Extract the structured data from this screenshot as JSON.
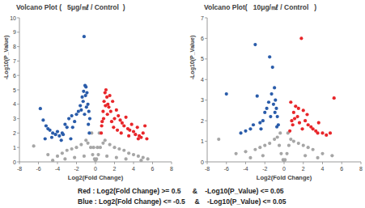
{
  "chart_data": [
    {
      "type": "scatter",
      "title": "Volcano Plot (   5μg/㎖ / Control  )",
      "x_label": "Log2(Fold Change)",
      "y_label": "-Log10(P_Value)",
      "xlim": [
        -8,
        8
      ],
      "xticks": [
        -8,
        -6,
        -4,
        -2,
        0,
        2,
        4,
        6,
        8
      ],
      "ylim": [
        0,
        10
      ],
      "yticks": [
        0,
        1,
        2,
        3,
        4,
        5,
        6,
        7,
        8,
        9,
        10
      ],
      "grid": false,
      "marker": "circle",
      "series": [
        {
          "color": "#a6a6a6",
          "x": [
            -6.5,
            -5,
            -4,
            -3.5,
            -3,
            -2.5,
            -2,
            -1.5,
            -1,
            -0.8,
            -0.5,
            -0.3,
            -0.1,
            0,
            0.1,
            0.3,
            0.5,
            0.8,
            1,
            1.5,
            2,
            2.5,
            3,
            3.5,
            4,
            4.5,
            5,
            5.5,
            -0.4,
            -0.2,
            0.2,
            0.4,
            -1.2,
            1.2,
            -2.2,
            2.2,
            -3.2,
            3.2,
            -4.5,
            4.8
          ],
          "values": [
            1.1,
            0.5,
            0.4,
            0.6,
            0.8,
            0.9,
            1.0,
            1.2,
            1.5,
            1.3,
            1.0,
            0.5,
            0.2,
            0.1,
            0.2,
            0.5,
            1.0,
            1.3,
            1.5,
            1.2,
            1.0,
            0.9,
            0.8,
            0.6,
            0.5,
            0.4,
            0.3,
            0.2,
            2.0,
            1.0,
            1.0,
            2.0,
            0.4,
            0.4,
            0.3,
            0.3,
            0.2,
            0.2,
            0.1,
            0.1
          ]
        },
        {
          "color": "#2a5caa",
          "x": [
            -5.8,
            -5.5,
            -5.2,
            -5,
            -4.8,
            -4.5,
            -4.2,
            -4,
            -3.8,
            -3.5,
            -3.2,
            -3,
            -2.8,
            -2.5,
            -2.2,
            -2,
            -1.8,
            -1.5,
            -1.3,
            -1.2,
            -1.1,
            -1,
            -0.9,
            -0.8,
            -0.7,
            -0.6,
            -1.4,
            -1.6,
            -2.4,
            -3.4,
            -4.6,
            -1.05,
            -0.95,
            -1.25,
            -0.75,
            -0.65,
            -1.15,
            -2.6,
            -3.6,
            -5.3
          ],
          "values": [
            3.7,
            2.9,
            2.5,
            2.3,
            2.2,
            2.0,
            1.9,
            2.1,
            1.8,
            2.0,
            2.6,
            2.4,
            3.0,
            3.2,
            2.8,
            3.3,
            3.5,
            3.6,
            4.2,
            8.7,
            5.3,
            5.2,
            4.8,
            4.0,
            3.5,
            3.0,
            4.5,
            3.9,
            2.4,
            1.9,
            1.7,
            4.6,
            3.8,
            4.9,
            2.6,
            2.0,
            3.3,
            1.6,
            1.5,
            1.6
          ]
        },
        {
          "color": "#e8262a",
          "x": [
            0.6,
            0.7,
            0.8,
            0.9,
            1.0,
            1.1,
            1.2,
            1.3,
            1.4,
            1.5,
            1.6,
            1.8,
            2.0,
            2.2,
            2.4,
            2.6,
            2.8,
            3.0,
            3.2,
            3.4,
            3.6,
            3.8,
            4.0,
            4.2,
            4.4,
            4.6,
            4.8,
            5.0,
            5.2,
            5.4,
            0.65,
            0.85,
            1.05,
            1.25,
            1.7,
            1.9,
            2.3,
            2.7,
            3.5,
            4.5
          ],
          "values": [
            2.0,
            2.8,
            3.5,
            4.2,
            4.8,
            5.0,
            4.5,
            4.0,
            3.8,
            4.6,
            3.5,
            4.2,
            3.0,
            3.6,
            3.2,
            2.9,
            2.7,
            2.5,
            3.1,
            2.3,
            2.2,
            2.6,
            2.1,
            1.9,
            2.4,
            1.8,
            1.7,
            2.0,
            2.5,
            1.6,
            2.5,
            3.0,
            3.9,
            3.3,
            2.8,
            2.4,
            2.2,
            2.0,
            1.8,
            1.6
          ]
        }
      ]
    },
    {
      "type": "scatter",
      "title": "Volcano Plot(   10μg/㎖ / Control   )",
      "x_label": "Log2(Fold Change)",
      "y_label": "-Log10(P_Value)",
      "xlim": [
        -8,
        8
      ],
      "xticks": [
        -8,
        -6,
        -4,
        -2,
        0,
        2,
        4,
        6,
        8
      ],
      "ylim": [
        0,
        7
      ],
      "yticks": [
        0,
        1,
        2,
        3,
        4,
        5,
        6,
        7
      ],
      "grid": false,
      "marker": "circle",
      "series": [
        {
          "color": "#a6a6a6",
          "x": [
            -6.8,
            -5,
            -4,
            -3,
            -2.5,
            -2,
            -1.5,
            -1,
            -0.7,
            -0.5,
            -0.3,
            -0.1,
            0,
            0.1,
            0.3,
            0.5,
            0.7,
            1,
            1.5,
            2,
            2.5,
            3,
            4,
            5,
            -0.4,
            0.4,
            -2.2,
            2.2,
            -3.5,
            3.5
          ],
          "values": [
            1.1,
            0.4,
            0.5,
            0.6,
            0.7,
            0.8,
            0.9,
            1.1,
            1.2,
            0.8,
            0.4,
            0.1,
            0.05,
            0.1,
            0.4,
            0.8,
            1.1,
            1.0,
            0.9,
            0.8,
            0.7,
            0.6,
            0.4,
            0.3,
            1.4,
            1.4,
            0.3,
            0.3,
            0.2,
            0.2
          ]
        },
        {
          "color": "#2a5caa",
          "x": [
            -6.0,
            -3.0,
            -2.8,
            -1.5,
            -1.2,
            -1.0,
            -0.9,
            -0.8,
            -0.7,
            -0.6,
            -1.3,
            -1.6,
            -1.8,
            -2.0,
            -2.2,
            -2.5,
            -3.2,
            -3.5,
            -4.0,
            -4.5,
            -1.1,
            -0.95,
            -0.75,
            -1.4,
            -2.4
          ],
          "values": [
            3.3,
            5.7,
            3.2,
            5.1,
            4.6,
            3.6,
            3.0,
            2.6,
            2.2,
            1.8,
            3.3,
            2.9,
            2.6,
            2.4,
            2.0,
            1.9,
            1.8,
            1.6,
            1.5,
            1.4,
            2.8,
            2.4,
            1.7,
            2.2,
            1.6
          ]
        },
        {
          "color": "#e8262a",
          "x": [
            1.8,
            5.2,
            0.6,
            0.8,
            1.0,
            1.2,
            1.4,
            1.6,
            2.0,
            2.2,
            2.5,
            2.8,
            3.0,
            3.3,
            3.6,
            4.0,
            4.4,
            0.7,
            0.9,
            1.1,
            1.5,
            1.9,
            2.4,
            3.5,
            4.8
          ],
          "values": [
            6.0,
            3.1,
            1.5,
            2.0,
            2.4,
            2.7,
            2.2,
            1.9,
            2.5,
            2.0,
            1.8,
            1.7,
            1.6,
            1.5,
            1.9,
            1.4,
            1.3,
            2.9,
            1.8,
            2.1,
            2.6,
            1.6,
            2.3,
            1.4,
            1.4
          ]
        }
      ]
    }
  ],
  "annotations": [
    "Red : Log2(Fold Change) >= 0.5      &    -Log10(P_Value) <= 0.05",
    "Blue : Log2(Fold Change) <= -0.5     &    -Log10(P_Value) <= 0.05"
  ]
}
